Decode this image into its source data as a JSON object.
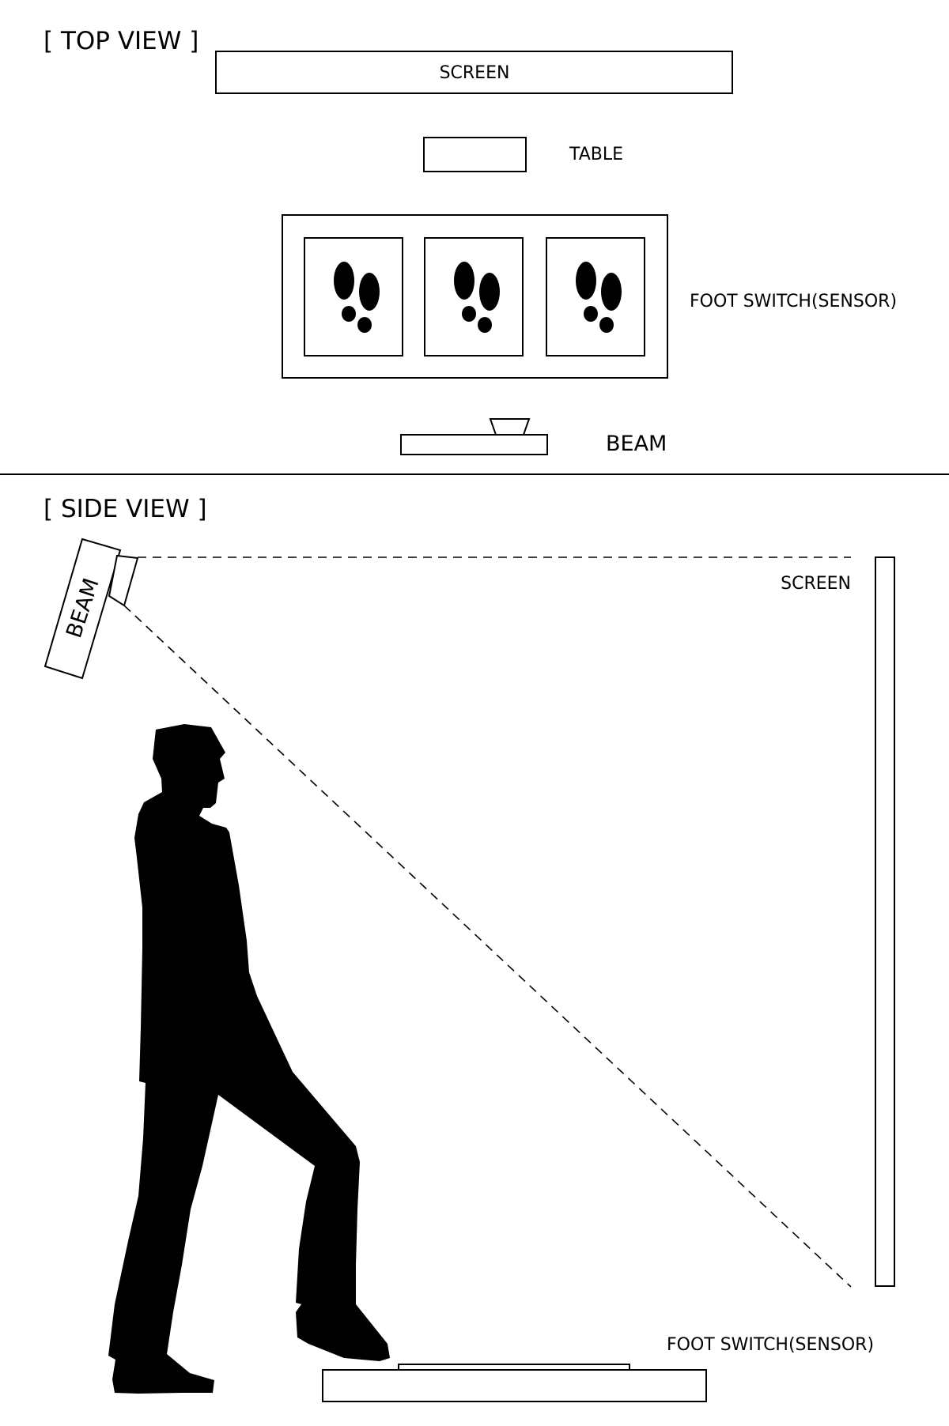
{
  "top_view": {
    "title": "[ TOP VIEW ]",
    "screen_label": "SCREEN",
    "table_label": "TABLE",
    "foot_switch_label": "FOOT SWITCH(SENSOR)",
    "beam_label": "BEAM",
    "footprint_icon": "footprints-icon",
    "footprint_pad_count": 3
  },
  "side_view": {
    "title": "[ SIDE VIEW ]",
    "beam_label": "BEAM",
    "screen_label": "SCREEN",
    "foot_switch_label": "FOOT SWITCH(SENSOR)",
    "person_icon": "person-stepping-silhouette"
  },
  "colors": {
    "ink": "#000000",
    "background": "#ffffff"
  }
}
